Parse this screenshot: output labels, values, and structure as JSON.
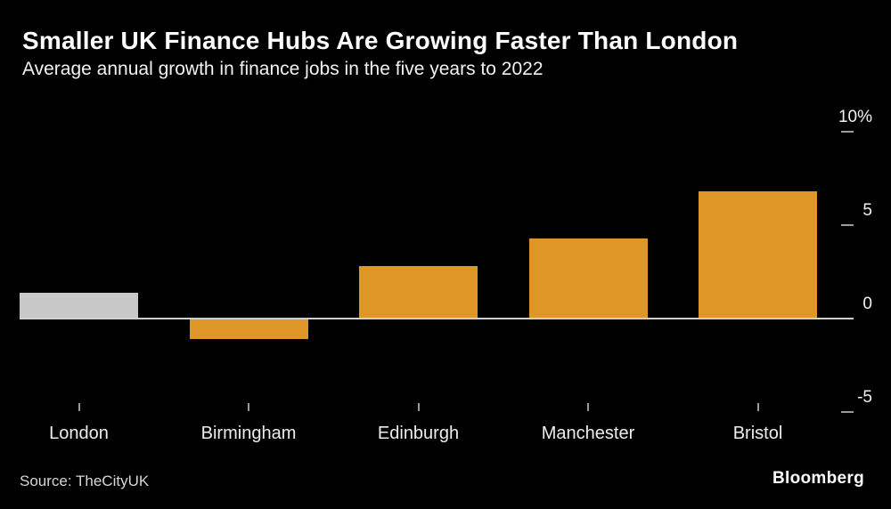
{
  "header": {
    "title": "Smaller UK Finance Hubs Are Growing Faster Than London",
    "subtitle": "Average annual growth in finance jobs in the five years to 2022"
  },
  "chart_data": {
    "type": "bar",
    "title": "Smaller UK Finance Hubs Are Growing Faster Than London",
    "subtitle": "Average annual growth in finance jobs in the five years to 2022",
    "categories": [
      "London",
      "Birmingham",
      "Edinburgh",
      "Manchester",
      "Bristol"
    ],
    "values": [
      1.4,
      -1.1,
      2.8,
      4.3,
      6.8
    ],
    "unit": "percent",
    "bar_colors": [
      "#c8c8c8",
      "#de9726",
      "#de9726",
      "#de9726",
      "#de9726"
    ],
    "yticks": [
      {
        "value": 10,
        "label": "10%"
      },
      {
        "value": 5,
        "label": "5"
      },
      {
        "value": 0,
        "label": "0"
      },
      {
        "value": -5,
        "label": "-5"
      }
    ],
    "ylim": [
      -5.5,
      11.3
    ],
    "legend": "none",
    "axis_side": "right",
    "background_color": "#000000",
    "highlight_color": "#de9726",
    "muted_bar_color": "#c8c8c8",
    "baseline_color": "#cfcfcf"
  },
  "footer": {
    "source": "Source:  TheCityUK",
    "logo": "Bloomberg"
  }
}
